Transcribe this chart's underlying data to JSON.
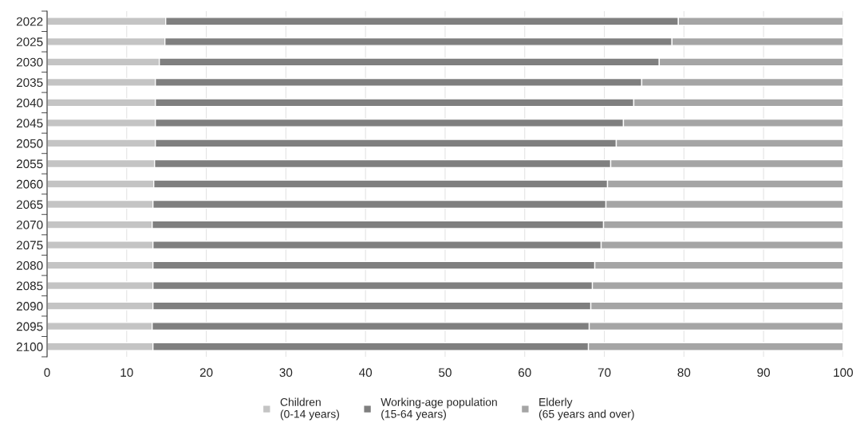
{
  "chart_data": {
    "type": "bar",
    "orientation": "horizontal",
    "stacked": true,
    "categories": [
      "2022",
      "2025",
      "2030",
      "2035",
      "2040",
      "2045",
      "2050",
      "2055",
      "2060",
      "2065",
      "2070",
      "2075",
      "2080",
      "2085",
      "2090",
      "2095",
      "2100"
    ],
    "series": [
      {
        "name": "Children\n(0-14 years)",
        "color": "#c4c4c4",
        "values": [
          14.9,
          14.8,
          14.1,
          13.6,
          13.6,
          13.6,
          13.6,
          13.5,
          13.4,
          13.3,
          13.2,
          13.3,
          13.3,
          13.3,
          13.3,
          13.2,
          13.3
        ]
      },
      {
        "name": "Working-age population\n(15-64 years)",
        "color": "#7f7f7f",
        "values": [
          64.4,
          63.7,
          62.8,
          61.1,
          60.1,
          58.8,
          57.9,
          57.3,
          57.0,
          56.9,
          56.7,
          56.3,
          55.5,
          55.2,
          55.0,
          54.9,
          54.7
        ]
      },
      {
        "name": "Elderly\n(65 years and over)",
        "color": "#a5a5a5",
        "values": [
          20.7,
          21.5,
          23.1,
          25.3,
          26.3,
          27.6,
          28.5,
          29.2,
          29.6,
          29.8,
          30.1,
          30.4,
          31.2,
          31.5,
          31.7,
          31.9,
          32.0
        ]
      }
    ],
    "xlim": [
      0,
      100
    ],
    "xticks": [
      0,
      10,
      20,
      30,
      40,
      50,
      60,
      70,
      80,
      90,
      100
    ],
    "grid": "x",
    "legend": "bottom"
  }
}
